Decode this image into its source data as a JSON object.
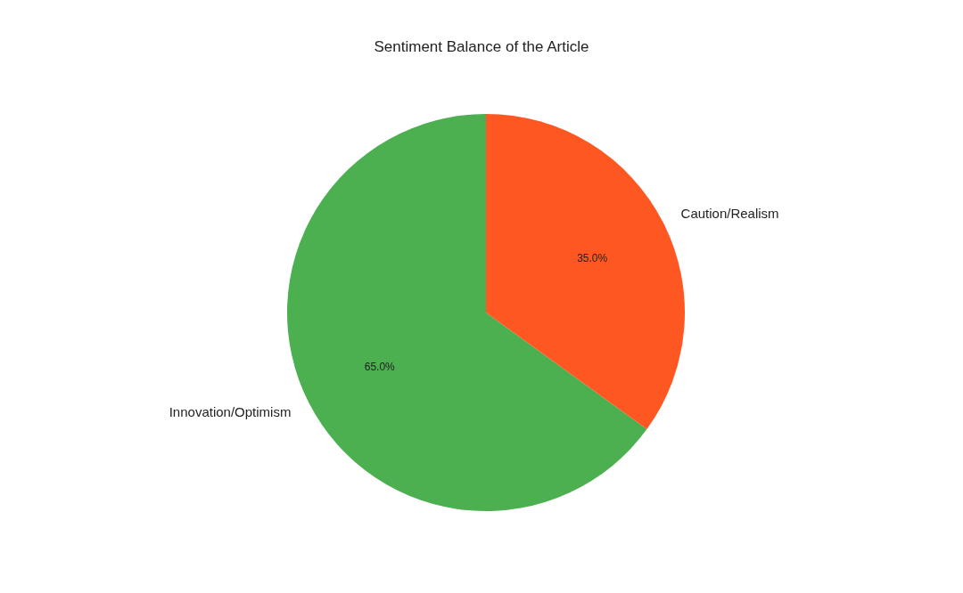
{
  "chart_data": {
    "type": "pie",
    "title": "Sentiment Balance of the Article",
    "categories": [
      "Innovation/Optimism",
      "Caution/Realism"
    ],
    "values": [
      65,
      35
    ],
    "colors": [
      "#4caf50",
      "#ff5722"
    ],
    "value_labels": [
      "65.0%",
      "35.0%"
    ]
  }
}
